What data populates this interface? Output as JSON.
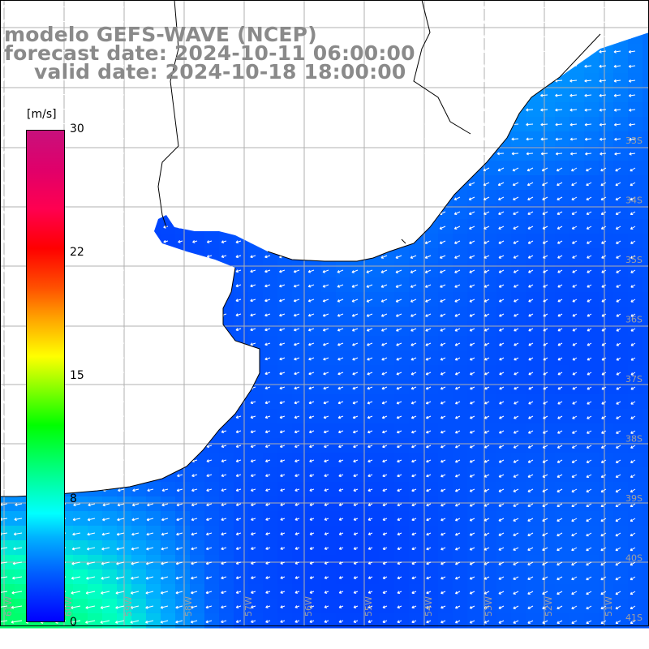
{
  "title": {
    "line1": "modelo GEFS-WAVE (NCEP)",
    "line2": "forecast date: 2024-10-11 06:00:00",
    "line3": "valid date: 2024-10-18 18:00:00"
  },
  "colorbar": {
    "unit": "[m/s]",
    "ticks": [
      "30",
      "22",
      "15",
      "8",
      "0"
    ],
    "min": 0,
    "max": 30
  },
  "map": {
    "lat_labels": [
      "33S",
      "34S",
      "35S",
      "36S",
      "37S",
      "38S",
      "39S",
      "40S",
      "41S"
    ],
    "lon_labels": [
      "61W",
      "60W",
      "59W",
      "58W",
      "57W",
      "56W",
      "55W",
      "54W",
      "53W",
      "52W",
      "51W"
    ],
    "colors": {
      "ocean_low": "#0030ff",
      "ocean_mid": "#0080ff",
      "ocean_high": "#00ffb0",
      "land": "#ffffff",
      "grid": "#b0b0b0",
      "coast": "#000000",
      "arrow": "#ffffff"
    }
  }
}
